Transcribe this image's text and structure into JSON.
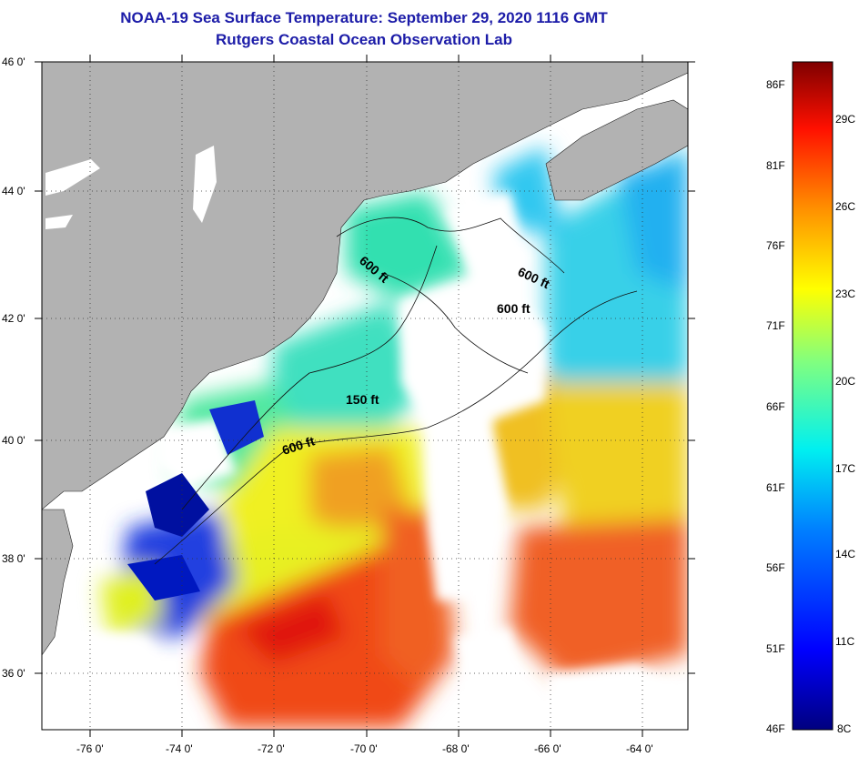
{
  "title": {
    "line1": "NOAA-19 Sea Surface Temperature:  September 29, 2020 1116 GMT",
    "line2": "Rutgers Coastal Ocean Observation Lab"
  },
  "map": {
    "lat_labels": [
      "46 0'",
      "44 0'",
      "42 0'",
      "40 0'",
      "38 0'",
      "36 0'"
    ],
    "lon_labels": [
      "-76 0'",
      "-74 0'",
      "-72 0'",
      "-70 0'",
      "-68 0'",
      "-66 0'",
      "-64 0'"
    ],
    "lat_range": [
      35,
      46
    ],
    "lon_range": [
      -77,
      -63
    ],
    "isobath_labels": [
      "600 ft",
      "600 ft",
      "600 ft",
      "150 ft",
      "600 ft"
    ]
  },
  "colorbar": {
    "fahrenheit_labels": [
      "86F",
      "81F",
      "76F",
      "71F",
      "66F",
      "61F",
      "56F",
      "51F",
      "46F"
    ],
    "celsius_labels": [
      "29C",
      "26C",
      "23C",
      "20C",
      "17C",
      "14C",
      "11C",
      "8C"
    ]
  },
  "colors": {
    "land": "#b2b2b2",
    "title": "#1c1ca8",
    "cold": "#00007f",
    "cool": "#0050ff",
    "mid": "#00e0e0",
    "mild": "#50f0a0",
    "warm": "#f0f000",
    "hot": "#ff8000",
    "very_hot": "#f02000",
    "max": "#7f0000"
  }
}
